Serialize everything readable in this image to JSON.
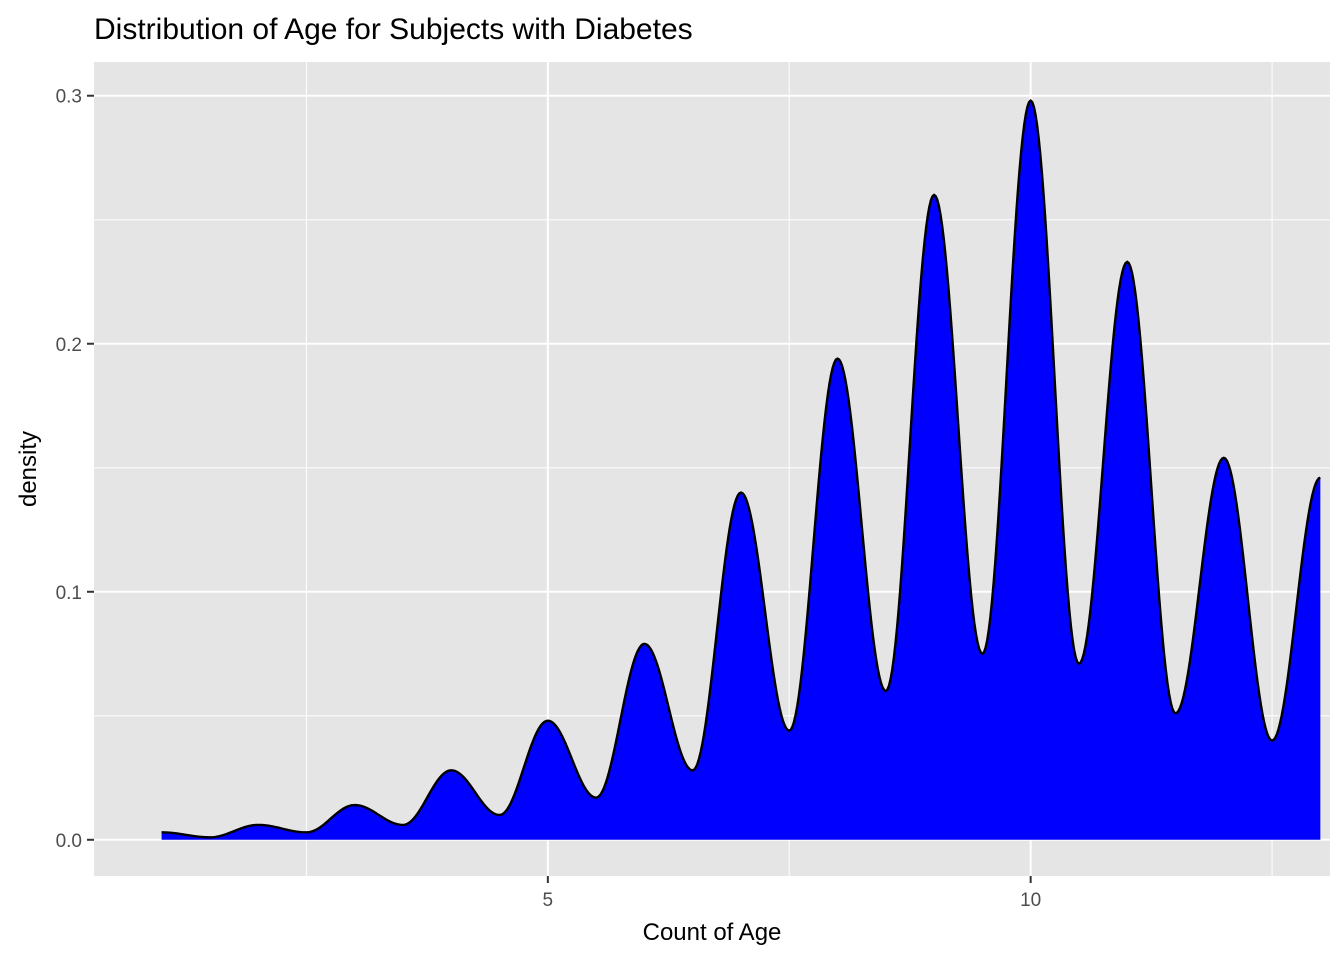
{
  "chart_data": {
    "type": "area",
    "title": "Distribution of Age for Subjects with Diabetes",
    "xlabel": "Count of Age",
    "ylabel": "density",
    "xlim": [
      0.3,
      13.1
    ],
    "ylim": [
      -0.0146,
      0.3136
    ],
    "x_ticks": [
      {
        "value": 5,
        "label": "5"
      },
      {
        "value": 10,
        "label": "10"
      }
    ],
    "x_minor_ticks": [
      2.5,
      7.5,
      12.5
    ],
    "y_ticks": [
      {
        "value": 0.0,
        "label": "0.0"
      },
      {
        "value": 0.1,
        "label": "0.1"
      },
      {
        "value": 0.2,
        "label": "0.2"
      },
      {
        "value": 0.3,
        "label": "0.3"
      }
    ],
    "y_minor_ticks": [
      0.05,
      0.15,
      0.25
    ],
    "grid": true,
    "legend": "none",
    "colors": {
      "fill": "#0000FF",
      "outline": "#000000",
      "panel": "#E5E5E5",
      "gridline": "#FFFFFF",
      "tick_text": "#4D4D4D",
      "tick_mark": "#333333"
    },
    "x_range": [
      1.0,
      13.0
    ],
    "series": [
      {
        "x": [
          1.0,
          1.5,
          2.0,
          2.5,
          3.0,
          3.5,
          4.0,
          4.5,
          5.0,
          5.5,
          6.0,
          6.5,
          7.0,
          7.5,
          8.0,
          8.5,
          9.0,
          9.5,
          10.0,
          10.5,
          11.0,
          11.5,
          12.0,
          12.5,
          13.0
        ],
        "y": [
          0.003,
          0.001,
          0.006,
          0.003,
          0.014,
          0.006,
          0.028,
          0.01,
          0.048,
          0.017,
          0.079,
          0.028,
          0.14,
          0.044,
          0.194,
          0.06,
          0.26,
          0.075,
          0.298,
          0.071,
          0.233,
          0.051,
          0.154,
          0.04,
          0.146
        ]
      }
    ]
  }
}
